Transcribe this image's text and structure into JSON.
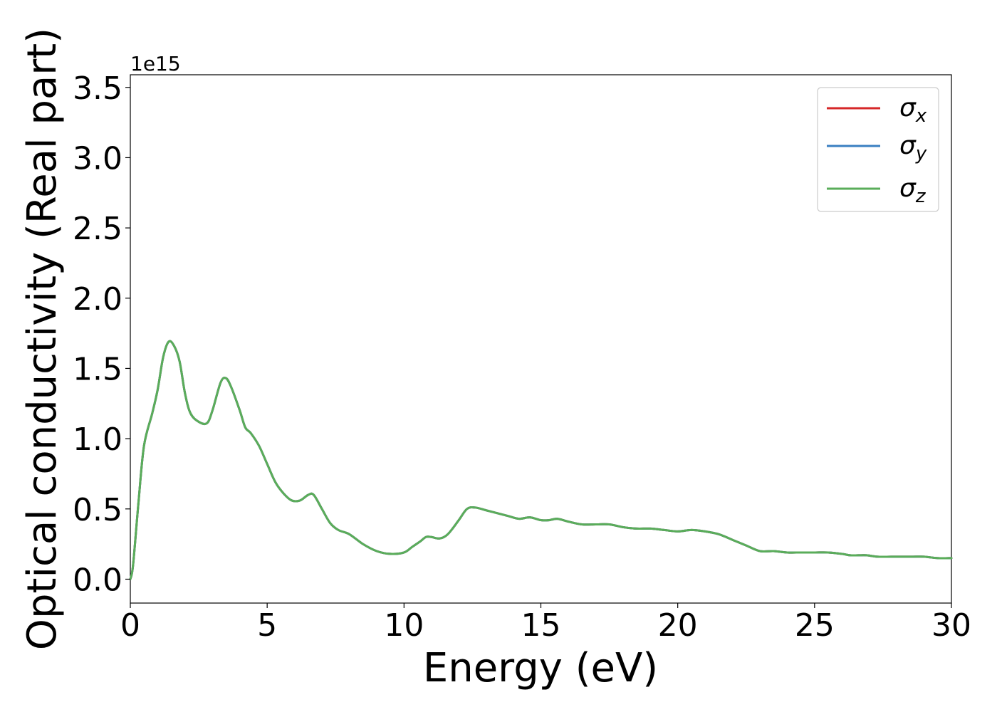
{
  "chart_data": {
    "type": "line",
    "title": "",
    "xlabel": "Energy (eV)",
    "ylabel": "Optical conductivity (Real part)",
    "y_offset_label": "1e15",
    "xlim": [
      0,
      30
    ],
    "ylim": [
      -0.17,
      3.59
    ],
    "x_ticks": [
      0,
      5,
      10,
      15,
      20,
      25,
      30
    ],
    "x_tick_labels": [
      "0",
      "5",
      "10",
      "15",
      "20",
      "25",
      "30"
    ],
    "y_ticks": [
      0.0,
      0.5,
      1.0,
      1.5,
      2.0,
      2.5,
      3.0,
      3.5
    ],
    "y_tick_labels": [
      "0.0",
      "0.5",
      "1.0",
      "1.5",
      "2.0",
      "2.5",
      "3.0",
      "3.5"
    ],
    "grid": false,
    "legend_position": "top-right",
    "series": [
      {
        "name": "σ",
        "subscript": "x",
        "color": "#d62728"
      },
      {
        "name": "σ",
        "subscript": "y",
        "color": "#3a7fc1"
      },
      {
        "name": "σ",
        "subscript": "z",
        "color": "#5aad5a"
      }
    ],
    "x": [
      0,
      0.1,
      0.3,
      0.5,
      0.8,
      1.0,
      1.2,
      1.4,
      1.6,
      1.8,
      2.0,
      2.2,
      2.5,
      2.8,
      3.0,
      3.3,
      3.5,
      3.7,
      4.0,
      4.2,
      4.4,
      4.7,
      5.0,
      5.3,
      5.6,
      5.9,
      6.2,
      6.5,
      6.7,
      7.0,
      7.3,
      7.6,
      8.0,
      8.5,
      9.0,
      9.5,
      10.0,
      10.3,
      10.6,
      10.8,
      11.0,
      11.3,
      11.6,
      12.0,
      12.3,
      12.6,
      13.0,
      13.4,
      13.8,
      14.2,
      14.6,
      15.0,
      15.3,
      15.6,
      16.0,
      16.5,
      17.0,
      17.5,
      18.0,
      18.5,
      19.0,
      19.5,
      20.0,
      20.5,
      21.0,
      21.5,
      22.0,
      22.5,
      23.0,
      23.5,
      24.0,
      24.5,
      25.0,
      25.5,
      26.0,
      26.3,
      26.6,
      26.9,
      27.3,
      27.8,
      28.2,
      28.6,
      29.0,
      29.5,
      30.0
    ],
    "values": [
      0.0,
      0.1,
      0.55,
      0.95,
      1.18,
      1.35,
      1.58,
      1.69,
      1.66,
      1.55,
      1.32,
      1.18,
      1.12,
      1.11,
      1.2,
      1.4,
      1.43,
      1.36,
      1.2,
      1.08,
      1.04,
      0.95,
      0.82,
      0.69,
      0.61,
      0.56,
      0.56,
      0.6,
      0.6,
      0.5,
      0.4,
      0.35,
      0.32,
      0.25,
      0.2,
      0.18,
      0.19,
      0.23,
      0.27,
      0.3,
      0.3,
      0.29,
      0.32,
      0.42,
      0.5,
      0.51,
      0.49,
      0.47,
      0.45,
      0.43,
      0.44,
      0.42,
      0.42,
      0.43,
      0.41,
      0.39,
      0.39,
      0.39,
      0.37,
      0.36,
      0.36,
      0.35,
      0.34,
      0.35,
      0.34,
      0.32,
      0.28,
      0.24,
      0.2,
      0.2,
      0.19,
      0.19,
      0.19,
      0.19,
      0.18,
      0.17,
      0.17,
      0.17,
      0.16,
      0.16,
      0.16,
      0.16,
      0.16,
      0.15,
      0.15
    ]
  }
}
